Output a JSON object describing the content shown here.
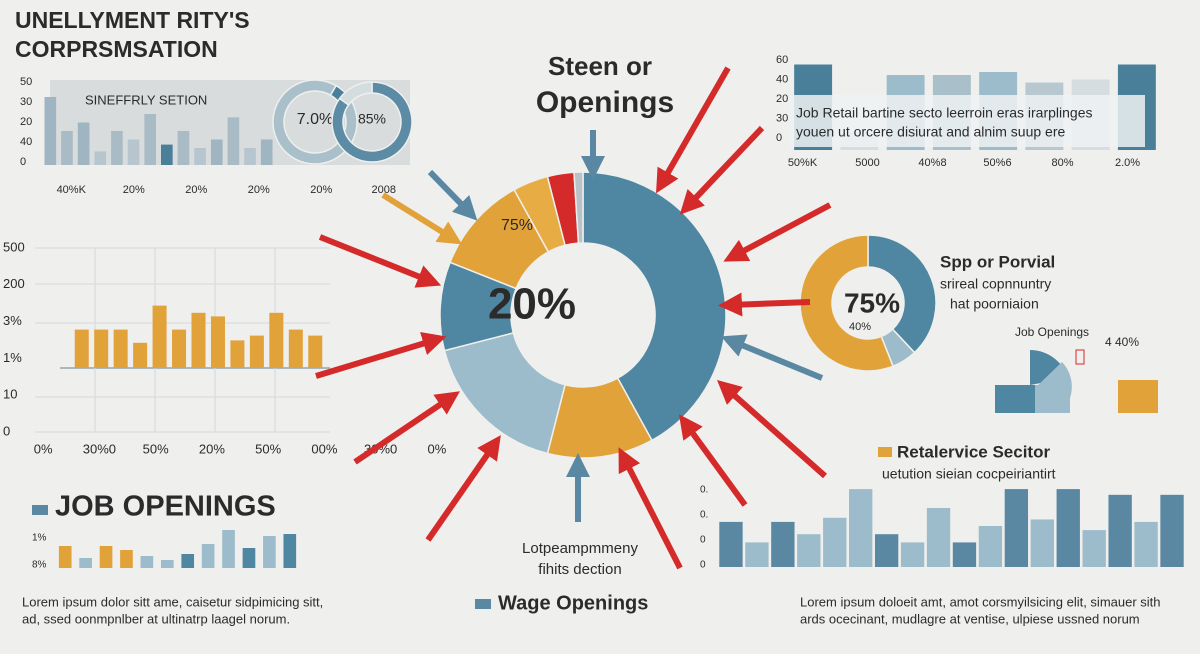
{
  "title": [
    "UNELLYMENT RITY'S",
    "CORPRSMSATION"
  ],
  "heading": [
    "Steen or",
    "Openings"
  ],
  "chart_data": [
    {
      "type": "bar",
      "subtitle": "SINEFFRLY SETION",
      "y_labels": [
        "50",
        "30",
        "20",
        "40",
        "0"
      ],
      "x_labels": [
        "40%K",
        "20%",
        "20%",
        "20%",
        "20%",
        "2008"
      ],
      "ylim": [
        0,
        50
      ],
      "values": [
        40,
        20,
        25,
        8,
        20,
        15,
        30,
        12,
        20,
        10,
        15,
        28,
        10,
        15
      ],
      "colors": [
        "#9fb5c1",
        "#a9bcc6",
        "#9fb5c1",
        "#b7c6ce",
        "#a9bcc6",
        "#b7c6ce",
        "#a9bcc6",
        "#4a7f9a",
        "#a9bcc6",
        "#b7c6ce",
        "#9fb5c1",
        "#a9bcc6",
        "#b7c6ce",
        "#9fb5c1"
      ]
    },
    {
      "type": "donut",
      "label": "7.0%",
      "values": [
        7,
        93
      ],
      "colors": [
        "#4a7f9a",
        "#a9c0cb"
      ]
    },
    {
      "type": "donut",
      "label": "85%",
      "values": [
        85,
        15
      ],
      "colors": [
        "#5b8ba5",
        "#d3dcdf"
      ]
    },
    {
      "type": "bar",
      "y_labels": [
        "60",
        "40",
        "20",
        "30",
        "0"
      ],
      "x_labels": [
        "50%K",
        "5000",
        "40%8",
        "50%6",
        "80%",
        "2.0%"
      ],
      "box_text": [
        "Job  Retail bartine secto leerroin eras irarplinges",
        "youen ut orcere disiurat and alnim suup ere"
      ],
      "ylim": [
        0,
        60
      ],
      "values": [
        57,
        12,
        50,
        50,
        52,
        45,
        47,
        57
      ],
      "colors": [
        "#4a7f9a",
        "#d5dde1",
        "#9dbccb",
        "#a9c0cb",
        "#9dbccb",
        "#b7c8d0",
        "#d5dde1",
        "#4a7f9a"
      ]
    },
    {
      "type": "bar",
      "y_labels": [
        "500",
        "200",
        "3%",
        "1%",
        "10",
        "0"
      ],
      "x_labels": [
        "0%",
        "30%0",
        "50%",
        "20%",
        "50%",
        "00%",
        "30%0",
        "0%"
      ],
      "ylim": [
        0,
        100
      ],
      "values": [
        32,
        32,
        32,
        21,
        52,
        32,
        46,
        43,
        23,
        27,
        46,
        32,
        27
      ],
      "colors": [
        "#e2a23a",
        "#e2a23a",
        "#e2a23a",
        "#e2a23a",
        "#e2a23a",
        "#e2a23a",
        "#e2a23a",
        "#e2a23a",
        "#e2a23a",
        "#e2a23a",
        "#e2a23a",
        "#e2a23a",
        "#e2a23a"
      ]
    },
    {
      "type": "donut",
      "annotations": [
        "20%",
        "75%"
      ],
      "values": [
        42,
        12,
        17,
        10,
        11,
        4,
        3,
        1
      ],
      "colors": [
        "#4f86a1",
        "#e2a23a",
        "#9dbccb",
        "#4f86a1",
        "#e2a23a",
        "#e8ac45",
        "#d42a2a",
        "#b8c2c8"
      ]
    },
    {
      "type": "donut",
      "annotations": [
        "75%",
        "40%"
      ],
      "values": [
        38,
        6,
        56
      ],
      "colors": [
        "#4f86a1",
        "#9dbccb",
        "#e2a23a"
      ]
    },
    {
      "type": "bar",
      "y_labels": [
        "1%",
        "8%"
      ],
      "ylim": [
        0,
        40
      ],
      "values": [
        22,
        10,
        22,
        18,
        12,
        8,
        14,
        24,
        38,
        20,
        32,
        34
      ],
      "colors": [
        "#e2a23a",
        "#9dbccb",
        "#e2a23a",
        "#e2a23a",
        "#9dbccb",
        "#9dbccb",
        "#4f86a1",
        "#9dbccb",
        "#9dbccb",
        "#4f86a1",
        "#9dbccb",
        "#4f86a1"
      ]
    },
    {
      "type": "bar",
      "y_labels": [
        "0.",
        "0.",
        "0",
        "0"
      ],
      "ylim": [
        0,
        100
      ],
      "values": [
        55,
        30,
        55,
        40,
        60,
        95,
        40,
        30,
        72,
        30,
        50,
        95,
        58,
        95,
        45,
        88,
        55,
        88
      ],
      "colors": [
        "#5a88a3",
        "#9dbccb",
        "#5a88a3",
        "#9dbccb",
        "#9dbccb",
        "#9dbccb",
        "#5a88a3",
        "#9dbccb",
        "#9dbccb",
        "#5a88a3",
        "#9dbccb",
        "#5a88a3",
        "#9dbccb",
        "#5a88a3",
        "#9dbccb",
        "#5a88a3",
        "#9dbccb",
        "#5a88a3"
      ]
    }
  ],
  "side_panel": {
    "title": "Spp or Porvial",
    "lines": [
      "srireal copnnuntry",
      "hat poorniaion"
    ],
    "job_label": "Job Openings",
    "job_value": "4 40%"
  },
  "retail": {
    "title": "Retalervice Secitor",
    "subtitle": "uetution sieian cocpeiriantirt"
  },
  "job_openings": "JOB OPENINGS",
  "center_caption": [
    "Lotpeampmmeny",
    "fihits dection"
  ],
  "wage": "Wage Openings",
  "paragraphs": [
    [
      "Lorem ipsum dolor sitt ame, caisetur sidpimicing sitt,",
      "ad, ssed oonmpnlber at ultinatrp laagel norum."
    ],
    [
      "Lorem ipsum doloeit amt, amot corsmyilsicing elit, simauer sith",
      "ards ocecinant, mudlagre at ventise, ulpiese ussned norum"
    ]
  ]
}
